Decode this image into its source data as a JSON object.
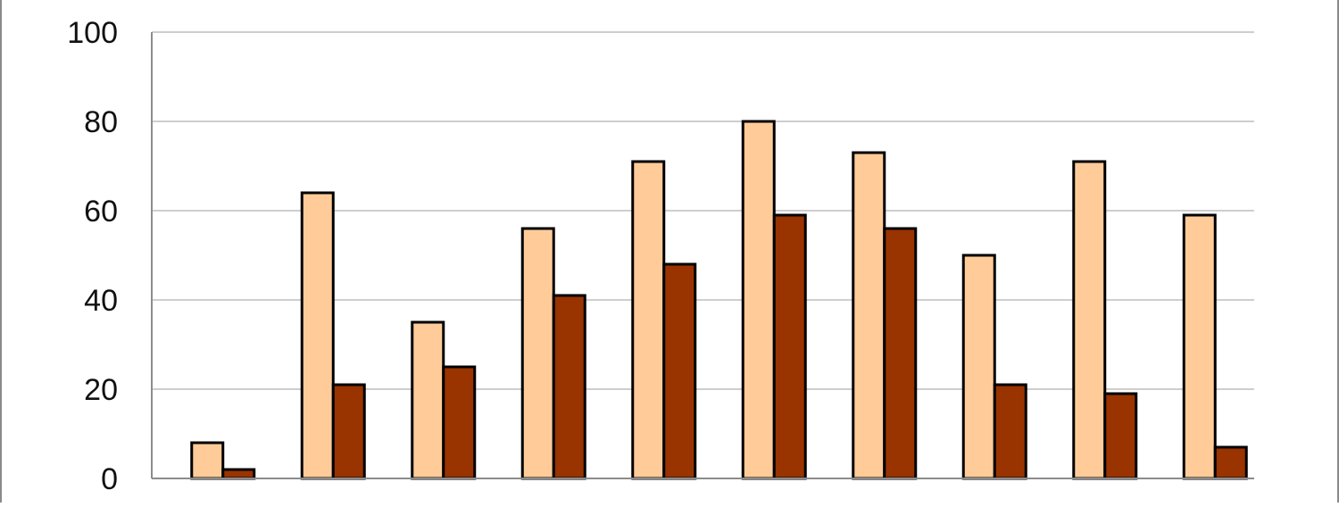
{
  "chart_data": {
    "type": "bar",
    "title": "",
    "xlabel": "",
    "ylabel": "",
    "ylim": [
      0,
      100
    ],
    "yticks": [
      "0",
      "20",
      "40",
      "60",
      "80",
      "100"
    ],
    "categories": [
      "",
      "",
      "",
      "",
      "",
      "",
      "",
      "",
      "",
      ""
    ],
    "grid": true,
    "series": [
      {
        "color": "#FFCC99",
        "values": [
          8,
          64,
          35,
          56,
          71,
          80,
          73,
          50,
          71,
          59
        ]
      },
      {
        "color": "#993300",
        "values": [
          2,
          21,
          25,
          41,
          48,
          59,
          56,
          21,
          19,
          7
        ]
      }
    ]
  }
}
